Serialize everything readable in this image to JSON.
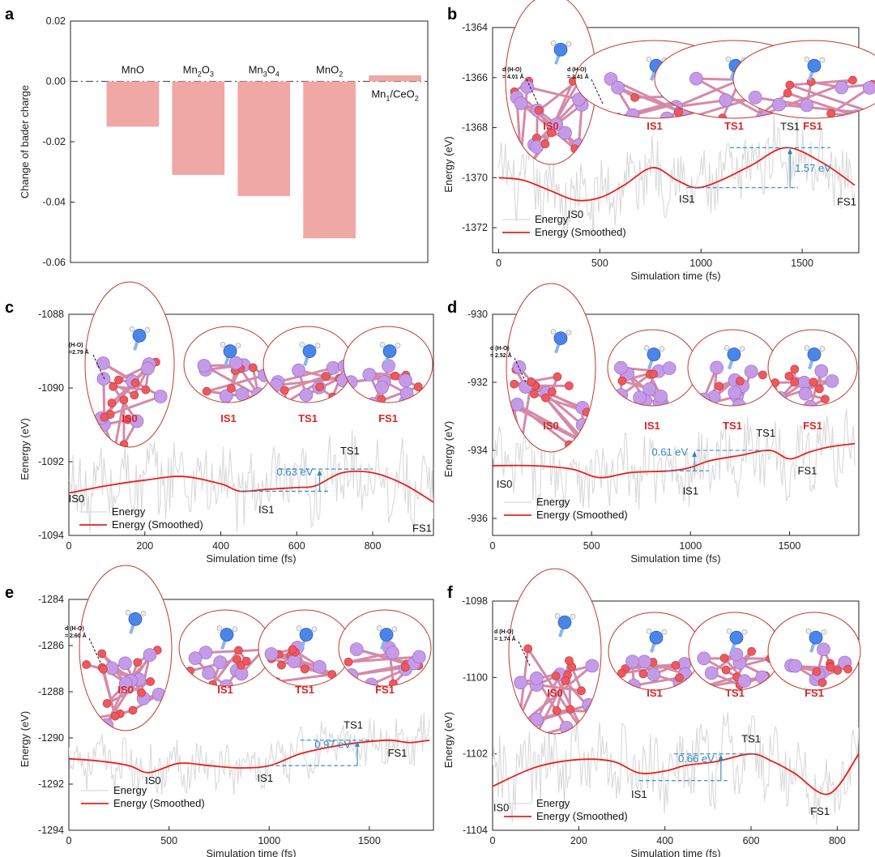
{
  "chart_data": [
    {
      "id": "a",
      "type": "bar",
      "panel_label": "a",
      "ylabel": "Change of bader charge",
      "ylim": [
        -0.06,
        0.02
      ],
      "yticks": [
        0.02,
        0.0,
        -0.02,
        -0.04,
        -0.06
      ],
      "ytick_labels": [
        "0.02",
        "0.00",
        "-0.02",
        "-0.04",
        "-0.06"
      ],
      "categories": [
        "MnO",
        "Mn2O3",
        "Mn3O4",
        "MnO2",
        "Mn1/CeO2"
      ],
      "category_display": [
        {
          "base": "MnO",
          "parts": []
        },
        {
          "base": "Mn",
          "parts": [
            [
              "2",
              "sub"
            ],
            [
              "O",
              ""
            ],
            [
              "3",
              "sub"
            ]
          ]
        },
        {
          "base": "Mn",
          "parts": [
            [
              "3",
              "sub"
            ],
            [
              "O",
              ""
            ],
            [
              "4",
              "sub"
            ]
          ]
        },
        {
          "base": "MnO",
          "parts": [
            [
              "2",
              "sub"
            ]
          ]
        },
        {
          "base": "Mn",
          "parts": [
            [
              "1",
              "sub"
            ],
            [
              "/CeO",
              ""
            ],
            [
              "2",
              "sub"
            ]
          ]
        }
      ],
      "values": [
        -0.015,
        -0.031,
        -0.038,
        -0.052,
        0.002
      ],
      "bar_color": "#f0a8a6",
      "reference_line": 0.0
    },
    {
      "id": "b",
      "type": "line",
      "panel_label": "b",
      "xlabel": "Simulation time (fs)",
      "ylabel": "Energy (eV)",
      "xlim": [
        -30,
        1780
      ],
      "ylim": [
        -1373,
        -1364
      ],
      "xticks": [
        0,
        500,
        1000,
        1500
      ],
      "yticks": [
        -1364,
        -1366,
        -1368,
        -1370,
        -1372
      ],
      "series": [
        {
          "name": "Energy",
          "color": "#d9d9d9",
          "style": "raw"
        },
        {
          "name": "Energy (Smoothed)",
          "color": "#e8201c",
          "style": "smooth",
          "x": [
            0,
            120,
            250,
            380,
            500,
            620,
            760,
            880,
            980,
            1100,
            1250,
            1420,
            1600,
            1760
          ],
          "y": [
            -1370.0,
            -1370.1,
            -1370.5,
            -1370.9,
            -1370.8,
            -1370.3,
            -1369.6,
            -1370.1,
            -1370.4,
            -1370.1,
            -1369.5,
            -1368.8,
            -1369.4,
            -1370.3
          ]
        }
      ],
      "noise_amp": 1.2,
      "annotations": [
        {
          "text": "IS0",
          "x": 380,
          "y": -1371.6
        },
        {
          "text": "IS1",
          "x": 930,
          "y": -1371.0
        },
        {
          "text": "TS1",
          "x": 1440,
          "y": -1368.1
        },
        {
          "text": "FS1",
          "x": 1720,
          "y": -1371.1
        }
      ],
      "barrier": {
        "label": "1.57 eV",
        "x_start": 930,
        "x_end": 1640,
        "low": -1370.4,
        "high": -1368.8,
        "arrow_x": 1440
      },
      "states": [
        "IS0",
        "IS1",
        "TS1",
        "FS1"
      ],
      "distances": [
        "d (H-O)\n= 4.01 Å",
        "d (H-O)\n= 3.41 Å"
      ],
      "legend": [
        "Energy",
        "Energy (Smoothed)"
      ]
    },
    {
      "id": "c",
      "type": "line",
      "panel_label": "c",
      "xlabel": "Simulation time (fs)",
      "ylabel": "Eenergy (eV)",
      "xlim": [
        0,
        960
      ],
      "ylim": [
        -1094,
        -1088
      ],
      "xticks": [
        0,
        200,
        400,
        600,
        800
      ],
      "yticks": [
        -1088,
        -1090,
        -1092,
        -1094
      ],
      "series": [
        {
          "name": "Energy",
          "color": "#d9d9d9",
          "style": "raw"
        },
        {
          "name": "Energy (Smoothed)",
          "color": "#e8201c",
          "style": "smooth",
          "x": [
            0,
            100,
            200,
            300,
            400,
            450,
            520,
            600,
            650,
            720,
            800,
            880,
            960
          ],
          "y": [
            -1092.85,
            -1092.65,
            -1092.5,
            -1092.4,
            -1092.6,
            -1092.8,
            -1092.75,
            -1092.7,
            -1092.65,
            -1092.3,
            -1092.3,
            -1092.6,
            -1093.1
          ]
        }
      ],
      "noise_amp": 0.9,
      "annotations": [
        {
          "text": "IS0",
          "x": 20,
          "y": -1093.1
        },
        {
          "text": "IS1",
          "x": 520,
          "y": -1093.4
        },
        {
          "text": "TS1",
          "x": 740,
          "y": -1091.8
        },
        {
          "text": "FS1",
          "x": 930,
          "y": -1093.9
        }
      ],
      "barrier": {
        "label": "0.63 eV",
        "x_start": 450,
        "x_end": 800,
        "low": -1092.8,
        "high": -1092.2,
        "arrow_x": 660
      },
      "states": [
        "IS0",
        "IS1",
        "TS1",
        "FS1"
      ],
      "distances": [
        "(H-O)\n=2.79 Å"
      ],
      "legend": [
        "Energy",
        "Energy (Smoothed)"
      ]
    },
    {
      "id": "d",
      "type": "line",
      "panel_label": "d",
      "xlabel": "Simulation time (fs)",
      "ylabel": "Energy (eV)",
      "xlim": [
        0,
        1850
      ],
      "ylim": [
        -936.5,
        -930
      ],
      "xticks": [
        0,
        500,
        1000,
        1500
      ],
      "yticks": [
        -930,
        -932,
        -934,
        -936
      ],
      "series": [
        {
          "name": "Energy",
          "color": "#d9d9d9",
          "style": "raw"
        },
        {
          "name": "Energy (Smoothed)",
          "color": "#e8201c",
          "style": "smooth",
          "x": [
            0,
            200,
            400,
            540,
            700,
            900,
            1000,
            1100,
            1250,
            1400,
            1500,
            1600,
            1700,
            1830
          ],
          "y": [
            -934.45,
            -934.45,
            -934.55,
            -934.8,
            -934.65,
            -934.6,
            -934.5,
            -934.3,
            -934.15,
            -934.0,
            -934.25,
            -934.05,
            -933.9,
            -933.8
          ]
        }
      ],
      "noise_amp": 0.9,
      "annotations": [
        {
          "text": "IS0",
          "x": 60,
          "y": -935.1
        },
        {
          "text": "IS1",
          "x": 1000,
          "y": -935.3
        },
        {
          "text": "TS1",
          "x": 1380,
          "y": -933.6
        },
        {
          "text": "FS1",
          "x": 1590,
          "y": -934.7
        }
      ],
      "barrier": {
        "label": "0.61 eV",
        "x_start": 880,
        "x_end": 1380,
        "low": -934.6,
        "high": -934.0,
        "arrow_x": 1020
      },
      "states": [
        "IS0",
        "IS1",
        "TS1",
        "FS1"
      ],
      "distances": [
        "d (H-O)\n= 2.52 Å"
      ],
      "legend": [
        "Energy",
        "Energy (Smoothed)"
      ]
    },
    {
      "id": "e",
      "type": "line",
      "panel_label": "e",
      "xlabel": "Simulation time (fs)",
      "ylabel": "Energy (eV)",
      "xlim": [
        0,
        1820
      ],
      "ylim": [
        -1294,
        -1284
      ],
      "xticks": [
        0,
        500,
        1000,
        1500
      ],
      "yticks": [
        -1284,
        -1286,
        -1288,
        -1290,
        -1292,
        -1294
      ],
      "series": [
        {
          "name": "Energy",
          "color": "#d9d9d9",
          "style": "raw"
        },
        {
          "name": "Energy (Smoothed)",
          "color": "#e8201c",
          "style": "smooth",
          "x": [
            0,
            150,
            300,
            400,
            550,
            700,
            850,
            1000,
            1150,
            1300,
            1450,
            1600,
            1700,
            1800
          ],
          "y": [
            -1290.9,
            -1291.0,
            -1291.2,
            -1291.5,
            -1291.1,
            -1291.2,
            -1291.3,
            -1291.2,
            -1290.7,
            -1290.4,
            -1290.2,
            -1290.1,
            -1290.2,
            -1290.1
          ]
        }
      ],
      "noise_amp": 0.9,
      "annotations": [
        {
          "text": "IS0",
          "x": 420,
          "y": -1292.0
        },
        {
          "text": "IS1",
          "x": 980,
          "y": -1291.9
        },
        {
          "text": "TS1",
          "x": 1420,
          "y": -1289.6
        },
        {
          "text": "FS1",
          "x": 1640,
          "y": -1290.8
        }
      ],
      "barrier": {
        "label": "0.97 eV",
        "x_start": 1000,
        "x_end": 1520,
        "low": -1291.2,
        "high": -1290.1,
        "arrow_x": 1440
      },
      "states": [
        "IS0",
        "IS1",
        "TS1",
        "FS1"
      ],
      "distances": [
        "d (H-O)\n= 2.60 Å"
      ],
      "legend": [
        "Energy",
        "Energy (Smoothed)"
      ]
    },
    {
      "id": "f",
      "type": "line",
      "panel_label": "f",
      "xlabel": "Simulation time (fs)",
      "ylabel": "Energy (eV)",
      "xlim": [
        0,
        850
      ],
      "ylim": [
        -1104,
        -1098
      ],
      "xticks": [
        0,
        200,
        400,
        600,
        800
      ],
      "yticks": [
        -1098,
        -1100,
        -1102,
        -1104
      ],
      "series": [
        {
          "name": "Energy",
          "color": "#d9d9d9",
          "style": "raw"
        },
        {
          "name": "Energy (Smoothed)",
          "color": "#e8201c",
          "style": "smooth",
          "x": [
            0,
            100,
            200,
            280,
            340,
            400,
            450,
            520,
            600,
            650,
            700,
            780,
            850
          ],
          "y": [
            -1102.85,
            -1102.35,
            -1102.15,
            -1102.2,
            -1102.5,
            -1102.45,
            -1102.3,
            -1102.2,
            -1102.0,
            -1102.2,
            -1102.5,
            -1103.05,
            -1102.0
          ]
        }
      ],
      "noise_amp": 0.9,
      "annotations": [
        {
          "text": "IS0",
          "x": 20,
          "y": -1103.5
        },
        {
          "text": "IS1",
          "x": 340,
          "y": -1103.15
        },
        {
          "text": "TS1",
          "x": 600,
          "y": -1101.7
        },
        {
          "text": "FS1",
          "x": 760,
          "y": -1103.6
        }
      ],
      "barrier": {
        "label": "0.66 eV",
        "x_start": 340,
        "x_end": 610,
        "low": -1102.7,
        "high": -1102.0,
        "arrow_x": 530
      },
      "states": [
        "IS0",
        "IS1",
        "TS1",
        "FS1"
      ],
      "distances": [
        "d (H-O)\n= 1.74 Å"
      ],
      "legend": [
        "Energy",
        "Energy (Smoothed)"
      ]
    }
  ]
}
